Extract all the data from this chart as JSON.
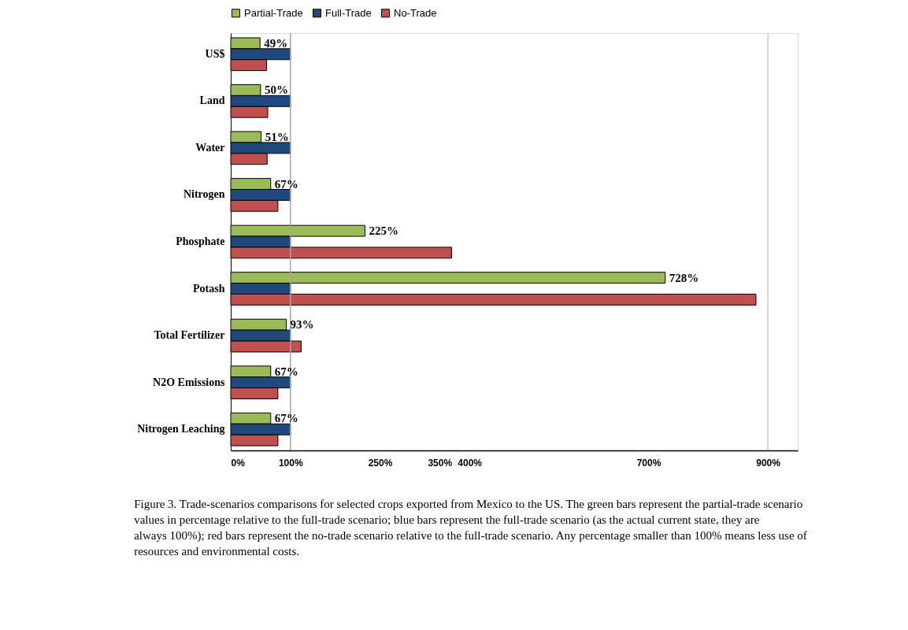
{
  "chart_data": {
    "type": "bar",
    "orientation": "horizontal",
    "legend": "top",
    "grid": false,
    "categories": [
      "US$",
      "Land",
      "Water",
      "Nitrogen",
      "Phosphate",
      "Potash",
      "Total Fertilizer",
      "N2O Emissions",
      "Nitrogen  Leaching"
    ],
    "series": [
      {
        "name": "Partial-Trade",
        "color": "#9bbb59",
        "values": [
          49,
          50,
          51,
          67,
          225,
          728,
          93,
          67,
          67
        ],
        "value_labels": [
          "49%",
          "50%",
          "51%",
          "67%",
          "225%",
          "728%",
          "93%",
          "67%",
          "67%"
        ]
      },
      {
        "name": "Full-Trade",
        "color": "#1f497d",
        "values": [
          100,
          100,
          100,
          100,
          100,
          100,
          100,
          100,
          100
        ]
      },
      {
        "name": "No-Trade",
        "color": "#c0504d",
        "values": [
          60,
          62,
          61,
          79,
          370,
          880,
          118,
          79,
          79
        ]
      }
    ],
    "xlim": [
      0,
      950
    ],
    "xticks": [
      {
        "value": 0,
        "label": "0%"
      },
      {
        "value": 100,
        "label": "100%"
      },
      {
        "value": 250,
        "label": "250%"
      },
      {
        "value": 350,
        "label": "350%"
      },
      {
        "value": 400,
        "label": "400%"
      },
      {
        "value": 700,
        "label": "700%"
      },
      {
        "value": 900,
        "label": "900%"
      }
    ],
    "ref_lines": [
      {
        "axis": "x",
        "value": 100,
        "color": "#a6a6a6",
        "line_style": "solid"
      },
      {
        "axis": "x",
        "value": 900,
        "color": "#c8c8c8",
        "line_style": "solid"
      }
    ],
    "annotations": [
      "Figure 3. Trade-scenarios comparisons for selected crops exported from Mexico to the US. The green bars represent the partial-trade scenario values in percentage relative to the full-trade scenario; blue bars represent the full-trade scenario (as the actual current state, they are always 100%); red bars represent the no-trade scenario relative to the full-trade scenario. Any percentage smaller than 100% means less use of resources and environmental costs."
    ]
  }
}
